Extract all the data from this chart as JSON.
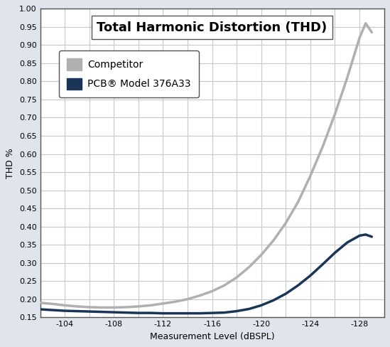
{
  "title": "Total Harmonic Distortion (THD)",
  "xlabel": "Measurement Level (dBSPL)",
  "ylabel": "THD %",
  "xlim": [
    -102,
    -130
  ],
  "ylim": [
    0.15,
    1.0
  ],
  "xticks": [
    -102,
    -104,
    -106,
    -108,
    -110,
    -112,
    -114,
    -116,
    -118,
    -120,
    -122,
    -124,
    -126,
    -128,
    -130
  ],
  "xtick_labels": [
    "",
    "-104",
    "",
    "-108",
    "",
    "-112",
    "",
    "-116",
    "",
    "-120",
    "",
    "-124",
    "",
    "-128",
    ""
  ],
  "yticks": [
    0.15,
    0.2,
    0.25,
    0.3,
    0.35,
    0.4,
    0.45,
    0.5,
    0.55,
    0.6,
    0.65,
    0.7,
    0.75,
    0.8,
    0.85,
    0.9,
    0.95,
    1.0
  ],
  "competitor_x": [
    -102,
    -103,
    -104,
    -105,
    -106,
    -107,
    -108,
    -109,
    -110,
    -111,
    -112,
    -113,
    -114,
    -115,
    -116,
    -117,
    -118,
    -119,
    -120,
    -121,
    -122,
    -123,
    -124,
    -125,
    -126,
    -127,
    -128,
    -128.5,
    -129
  ],
  "competitor_y": [
    0.19,
    0.187,
    0.183,
    0.18,
    0.178,
    0.177,
    0.177,
    0.178,
    0.18,
    0.183,
    0.188,
    0.193,
    0.2,
    0.21,
    0.222,
    0.238,
    0.26,
    0.288,
    0.322,
    0.362,
    0.41,
    0.468,
    0.54,
    0.62,
    0.71,
    0.81,
    0.92,
    0.96,
    0.935
  ],
  "pcb_x": [
    -102,
    -103,
    -104,
    -105,
    -106,
    -107,
    -108,
    -109,
    -110,
    -111,
    -112,
    -113,
    -114,
    -115,
    -116,
    -117,
    -118,
    -119,
    -120,
    -121,
    -122,
    -123,
    -124,
    -125,
    -126,
    -127,
    -128,
    -128.5,
    -129
  ],
  "pcb_y": [
    0.172,
    0.17,
    0.168,
    0.167,
    0.166,
    0.165,
    0.164,
    0.163,
    0.162,
    0.162,
    0.161,
    0.161,
    0.161,
    0.161,
    0.162,
    0.163,
    0.167,
    0.173,
    0.183,
    0.197,
    0.215,
    0.238,
    0.265,
    0.296,
    0.328,
    0.356,
    0.375,
    0.378,
    0.372
  ],
  "competitor_color": "#b0b0b0",
  "pcb_color": "#1a3558",
  "legend_competitor": "Competitor",
  "legend_pcb": "PCB® Model 376A33",
  "line_width": 2.5,
  "fig_bg_color": "#e0e4ec",
  "plot_bg": "#ffffff",
  "grid_color": "#c8c8c8",
  "border_color": "#888888",
  "title_fontsize": 13,
  "label_fontsize": 9,
  "tick_fontsize": 8,
  "legend_fontsize": 10
}
